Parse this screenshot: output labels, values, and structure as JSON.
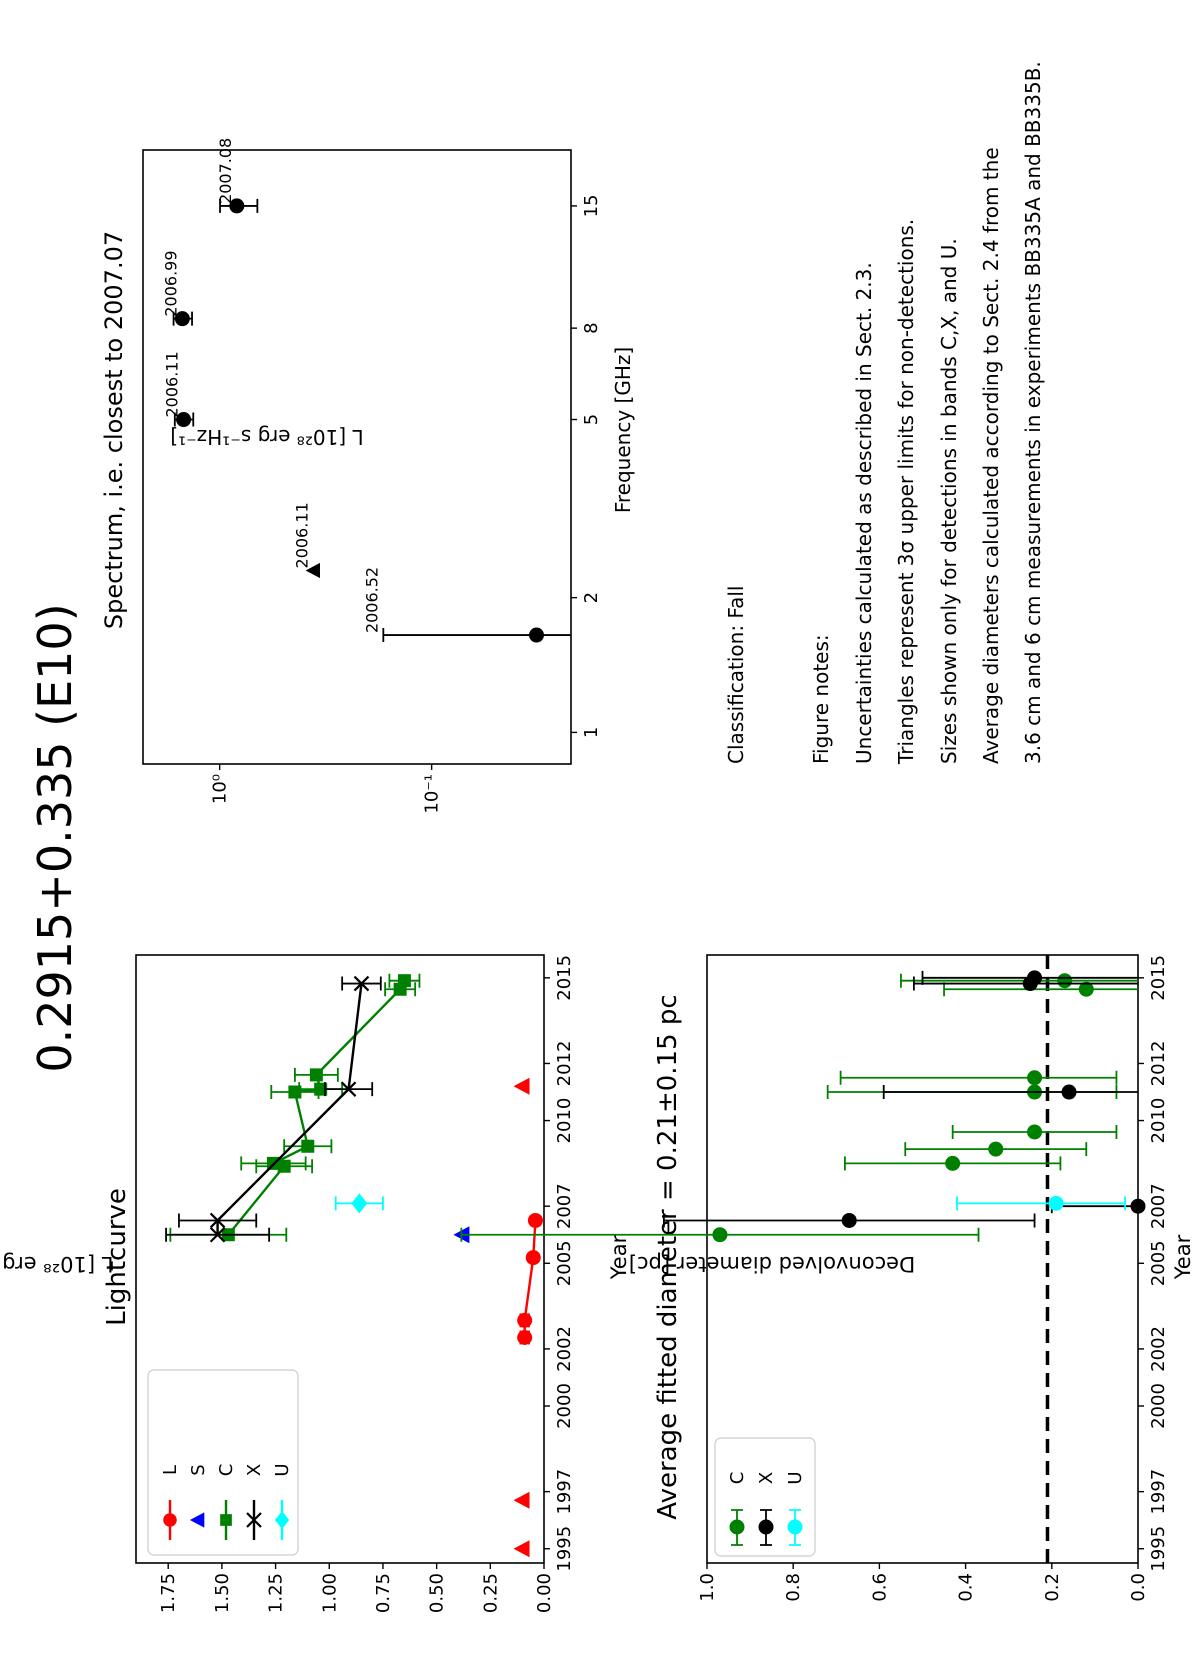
{
  "page": {
    "title": "0.2915+0.335 (E10)"
  },
  "colors": {
    "L": "#ff0000",
    "S": "#0000ff",
    "C": "#008000",
    "X": "#000000",
    "U": "#00ffff"
  },
  "lightcurve": {
    "title": "Lightcurve",
    "xlabel": "Year",
    "ylabel": "L [10²⁸ erg s⁻¹Hz⁻¹]",
    "legend_labels": [
      "L",
      "S",
      "C",
      "X",
      "U"
    ]
  },
  "diameter": {
    "title": "Average fitted diameter = 0.21±0.15 pc",
    "xlabel": "Year",
    "ylabel": "Deconvolved diameter [pc]",
    "legend_labels": [
      "C",
      "X",
      "U"
    ]
  },
  "spectrum": {
    "title": "Spectrum, i.e. closest to 2007.07",
    "xlabel": "Frequency [GHz]",
    "ylabel": "L [10²⁸ erg s⁻¹Hz⁻¹]"
  },
  "notes": {
    "classification": "Classification: Fall",
    "heading": "Figure notes:",
    "lines": [
      "Uncertainties calculated as described in Sect. 2.3.",
      "Triangles represent 3σ upper limits for non-detections.",
      "Sizes shown only for detections in bands C,X, and U.",
      "Average diameters calculated according to Sect. 2.4 from the",
      "3.6 cm and 6 cm measurements in experiments BB335A and BB335B."
    ]
  },
  "chart_data": [
    {
      "type": "line",
      "title": "Lightcurve",
      "xlabel": "Year",
      "ylabel": "L [10²⁸ erg s⁻¹Hz⁻¹]",
      "xlim": [
        1994.5,
        2015.8
      ],
      "ylim": [
        0,
        1.9
      ],
      "xticks": [
        1995,
        1997,
        2000,
        2002,
        2005,
        2007,
        2010,
        2012,
        2015
      ],
      "yticks": [
        0.0,
        0.25,
        0.5,
        0.75,
        1.0,
        1.25,
        1.5,
        1.75
      ],
      "ytick_labels": [
        "0.00",
        "0.25",
        "0.50",
        "0.75",
        "1.00",
        "1.25",
        "1.50",
        "1.75"
      ],
      "legend": "top-left",
      "series": [
        {
          "name": "L",
          "marker": "circle",
          "connected": true,
          "x": [
            2002.4,
            2003.0,
            2005.2,
            2006.5
          ],
          "y": [
            0.09,
            0.09,
            0.05,
            0.04
          ],
          "err": [
            0.02,
            0.02,
            0.01,
            0.01
          ]
        },
        {
          "name": "L",
          "marker": "triangle-down",
          "connected": false,
          "x": [
            1995.0,
            1996.7,
            2011.2
          ],
          "y": [
            0.1,
            0.1,
            0.1
          ]
        },
        {
          "name": "S",
          "marker": "triangle-down",
          "connected": false,
          "x": [
            2006.0
          ],
          "y": [
            0.38
          ]
        },
        {
          "name": "C",
          "marker": "square",
          "connected": true,
          "x": [
            2006.0,
            2008.4,
            2008.5,
            2009.1,
            2011.0,
            2011.1,
            2011.6,
            2014.6,
            2014.9
          ],
          "y": [
            1.47,
            1.21,
            1.26,
            1.1,
            1.16,
            1.04,
            1.06,
            0.67,
            0.65
          ],
          "err": [
            0.27,
            0.13,
            0.15,
            0.11,
            0.11,
            0.1,
            0.1,
            0.07,
            0.07
          ]
        },
        {
          "name": "X",
          "marker": "x",
          "connected": true,
          "x": [
            2006.0,
            2006.5,
            2011.1,
            2014.8
          ],
          "y": [
            1.52,
            1.52,
            0.91,
            0.85
          ],
          "err": [
            0.24,
            0.18,
            0.11,
            0.09
          ]
        },
        {
          "name": "U",
          "marker": "diamond",
          "connected": false,
          "x": [
            2007.1
          ],
          "y": [
            0.86
          ],
          "err": [
            0.11
          ]
        }
      ]
    },
    {
      "type": "scatter",
      "title": "Average fitted diameter = 0.21±0.15 pc",
      "xlabel": "Year",
      "ylabel": "Deconvolved diameter [pc]",
      "xlim": [
        1994.5,
        2015.8
      ],
      "ylim": [
        0,
        1.0
      ],
      "xticks": [
        1995,
        1997,
        2000,
        2002,
        2005,
        2007,
        2010,
        2012,
        2015
      ],
      "yticks": [
        0.0,
        0.2,
        0.4,
        0.6,
        0.8,
        1.0
      ],
      "ytick_labels": [
        "0.0",
        "0.2",
        "0.4",
        "0.6",
        "0.8",
        "1.0"
      ],
      "legend": "bottom-left",
      "mean_line": 0.21,
      "series": [
        {
          "name": "C",
          "x": [
            2006.0,
            2008.5,
            2009.0,
            2009.6,
            2011.0,
            2011.5,
            2014.6,
            2014.9
          ],
          "y": [
            0.97,
            0.43,
            0.33,
            0.24,
            0.24,
            0.24,
            0.12,
            0.17
          ],
          "err_lo": [
            0.6,
            0.25,
            0.21,
            0.19,
            0.19,
            0.19,
            0.12,
            0.17
          ],
          "err_hi": [
            0.6,
            0.25,
            0.21,
            0.19,
            0.48,
            0.45,
            0.33,
            0.38
          ]
        },
        {
          "name": "X",
          "x": [
            2006.5,
            2007.0,
            2011.0,
            2014.8,
            2015.0
          ],
          "y": [
            0.67,
            0.0,
            0.16,
            0.25,
            0.24
          ],
          "err_lo": [
            0.43,
            0.0,
            0.16,
            0.25,
            0.24
          ],
          "err_hi": [
            0.43,
            0.2,
            0.43,
            0.27,
            0.26
          ]
        },
        {
          "name": "U",
          "x": [
            2007.1
          ],
          "y": [
            0.19
          ],
          "err_lo": [
            0.16
          ],
          "err_hi": [
            0.23
          ]
        }
      ]
    },
    {
      "type": "scatter",
      "title": "Spectrum, i.e. closest to 2007.07",
      "xlabel": "Frequency [GHz]",
      "ylabel": "L [10²⁸ erg s⁻¹Hz⁻¹]",
      "xscale": "log",
      "yscale": "log",
      "xlim": [
        0.85,
        20
      ],
      "ylim": [
        0.022,
        2.3
      ],
      "xticks": [
        1,
        2,
        5,
        8,
        15
      ],
      "yticks": [
        1,
        0.1
      ],
      "ytick_labels": [
        "10⁰",
        "10⁻¹"
      ],
      "points": [
        {
          "x": 1.65,
          "y": 0.032,
          "label": "2006.52",
          "marker": "circle",
          "err_lo": 0.0,
          "err_hi": 0.137
        },
        {
          "x": 2.3,
          "y": 0.36,
          "label": "2006.11",
          "marker": "triangle-down"
        },
        {
          "x": 5.0,
          "y": 1.48,
          "label": "2006.11",
          "marker": "circle",
          "xerr": 0.3
        },
        {
          "x": 8.4,
          "y": 1.5,
          "label": "2006.99",
          "marker": "circle",
          "xerr": 0.3
        },
        {
          "x": 15.0,
          "y": 0.83,
          "label": "2007.08",
          "marker": "circle",
          "xerr": 0.6
        }
      ]
    }
  ]
}
